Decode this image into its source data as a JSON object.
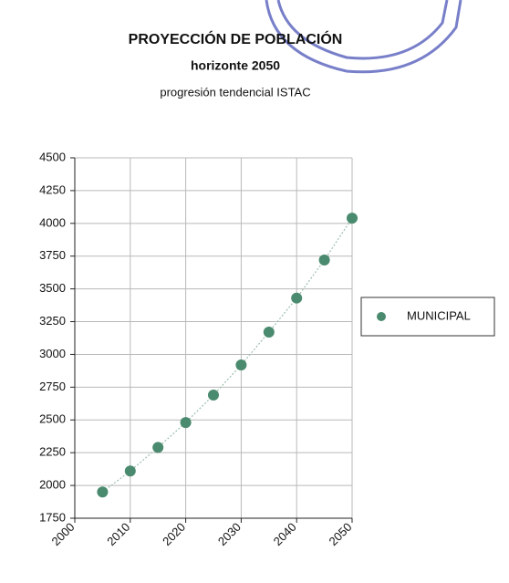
{
  "chart_data": {
    "type": "scatter",
    "title": "PROYECCIÓN DE POBLACIÓN",
    "subtitle": "horizonte  2050",
    "caption": "progresión tendencial ISTAC",
    "series": [
      {
        "name": "MUNICIPAL",
        "color": "#4a8a6e",
        "x": [
          2005,
          2010,
          2015,
          2020,
          2025,
          2030,
          2035,
          2040,
          2045,
          2050
        ],
        "values": [
          1950,
          2110,
          2290,
          2480,
          2690,
          2920,
          3170,
          3430,
          3720,
          4040
        ]
      }
    ],
    "xlim": [
      2000,
      2050
    ],
    "xticks": [
      2000,
      2010,
      2020,
      2030,
      2040,
      2050
    ],
    "ylim": [
      1750,
      4500
    ],
    "yticks": [
      1750,
      2000,
      2250,
      2500,
      2750,
      3000,
      3250,
      3500,
      3750,
      4000,
      4250,
      4500
    ],
    "grid": true,
    "trendline": true,
    "legend": "right"
  }
}
